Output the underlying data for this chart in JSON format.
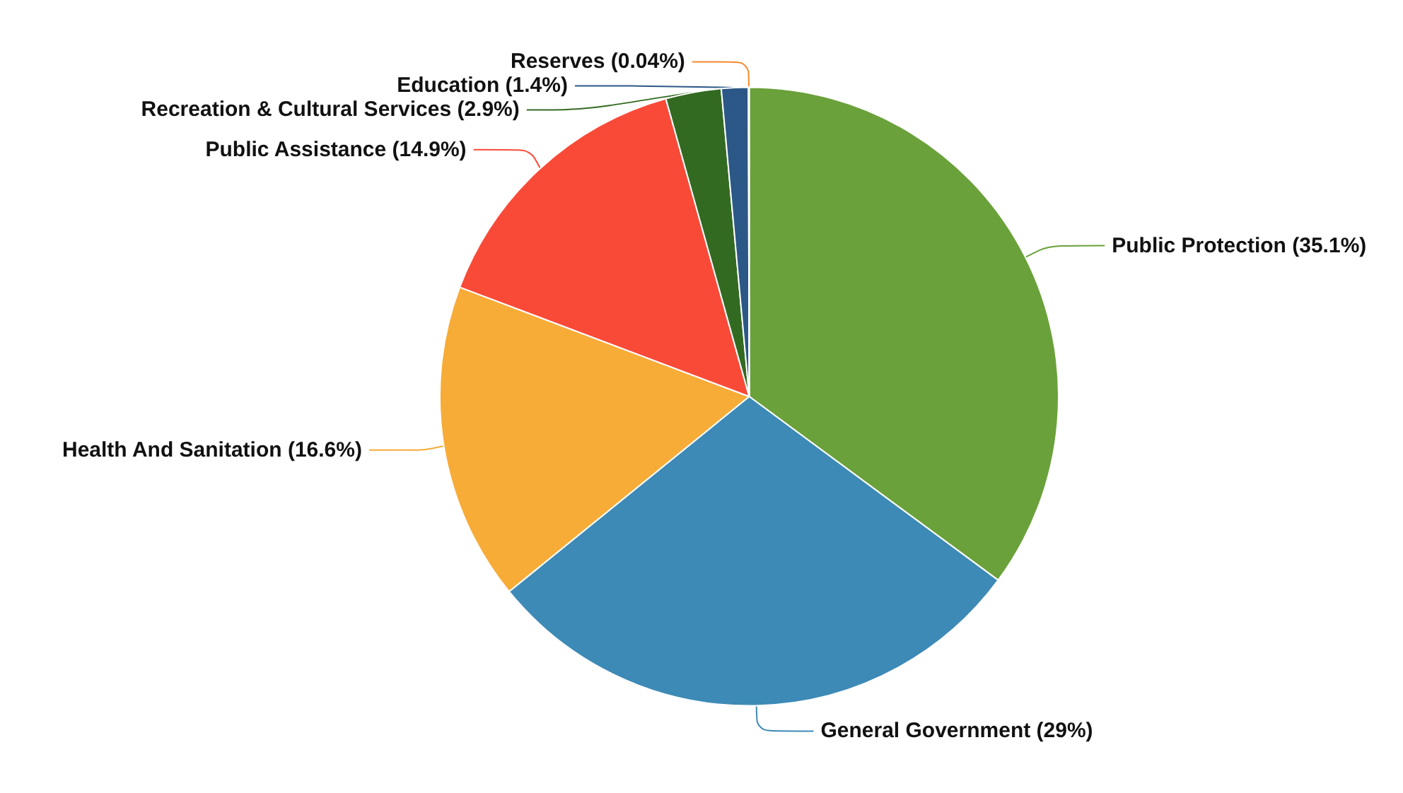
{
  "chart_data": {
    "type": "pie",
    "categories": [
      "Public Protection",
      "General Government",
      "Health And Sanitation",
      "Public Assistance",
      "Recreation & Cultural Services",
      "Education",
      "Reserves"
    ],
    "values": [
      35.1,
      29,
      16.6,
      14.9,
      2.9,
      1.4,
      0.04
    ],
    "value_labels": [
      "(35.1%)",
      "(29%)",
      "(16.6%)",
      "(14.9%)",
      "(2.9%)",
      "(1.4%)",
      "(0.04%)"
    ],
    "colors": [
      "#6aa13b",
      "#3d8ab6",
      "#f7ac38",
      "#f94a38",
      "#336a22",
      "#2b5886",
      "#f58a2e"
    ],
    "legend": false
  }
}
